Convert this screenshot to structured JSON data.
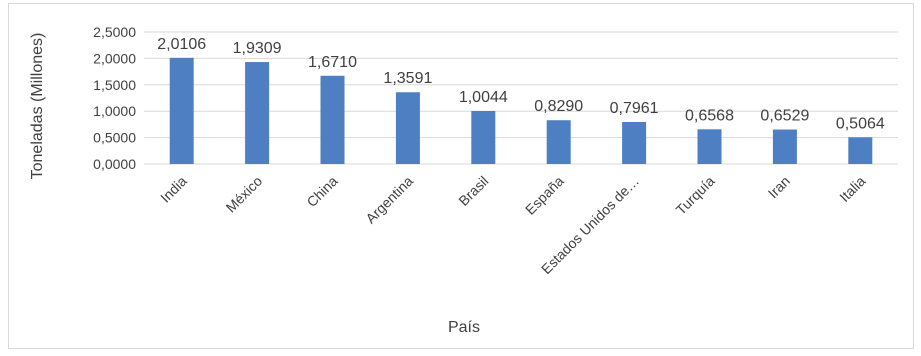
{
  "colors": {
    "bar": "#4e7fc3",
    "gridline": "#d9d9d9",
    "text": "#404040"
  },
  "chart_data": {
    "type": "bar",
    "title": "",
    "xlabel": "País",
    "ylabel": "Toneladas (Millones)",
    "ylim": [
      0,
      2.5
    ],
    "yticks": [
      "0,0000",
      "0,5000",
      "1,0000",
      "1,5000",
      "2,0000",
      "2,5000"
    ],
    "categories": [
      "India",
      "México",
      "China",
      "Argentina",
      "Brasil",
      "España",
      "Estados Unidos de…",
      "Turquía",
      "Iran",
      "Italia"
    ],
    "values": [
      2.0106,
      1.9309,
      1.671,
      1.3591,
      1.0044,
      0.829,
      0.7961,
      0.6568,
      0.6529,
      0.5064
    ],
    "data_labels": [
      "2,0106",
      "1,9309",
      "1,6710",
      "1,3591",
      "1,0044",
      "0,8290",
      "0,7961",
      "0,6568",
      "0,6529",
      "0,5064"
    ],
    "grid": true,
    "legend": "none"
  }
}
